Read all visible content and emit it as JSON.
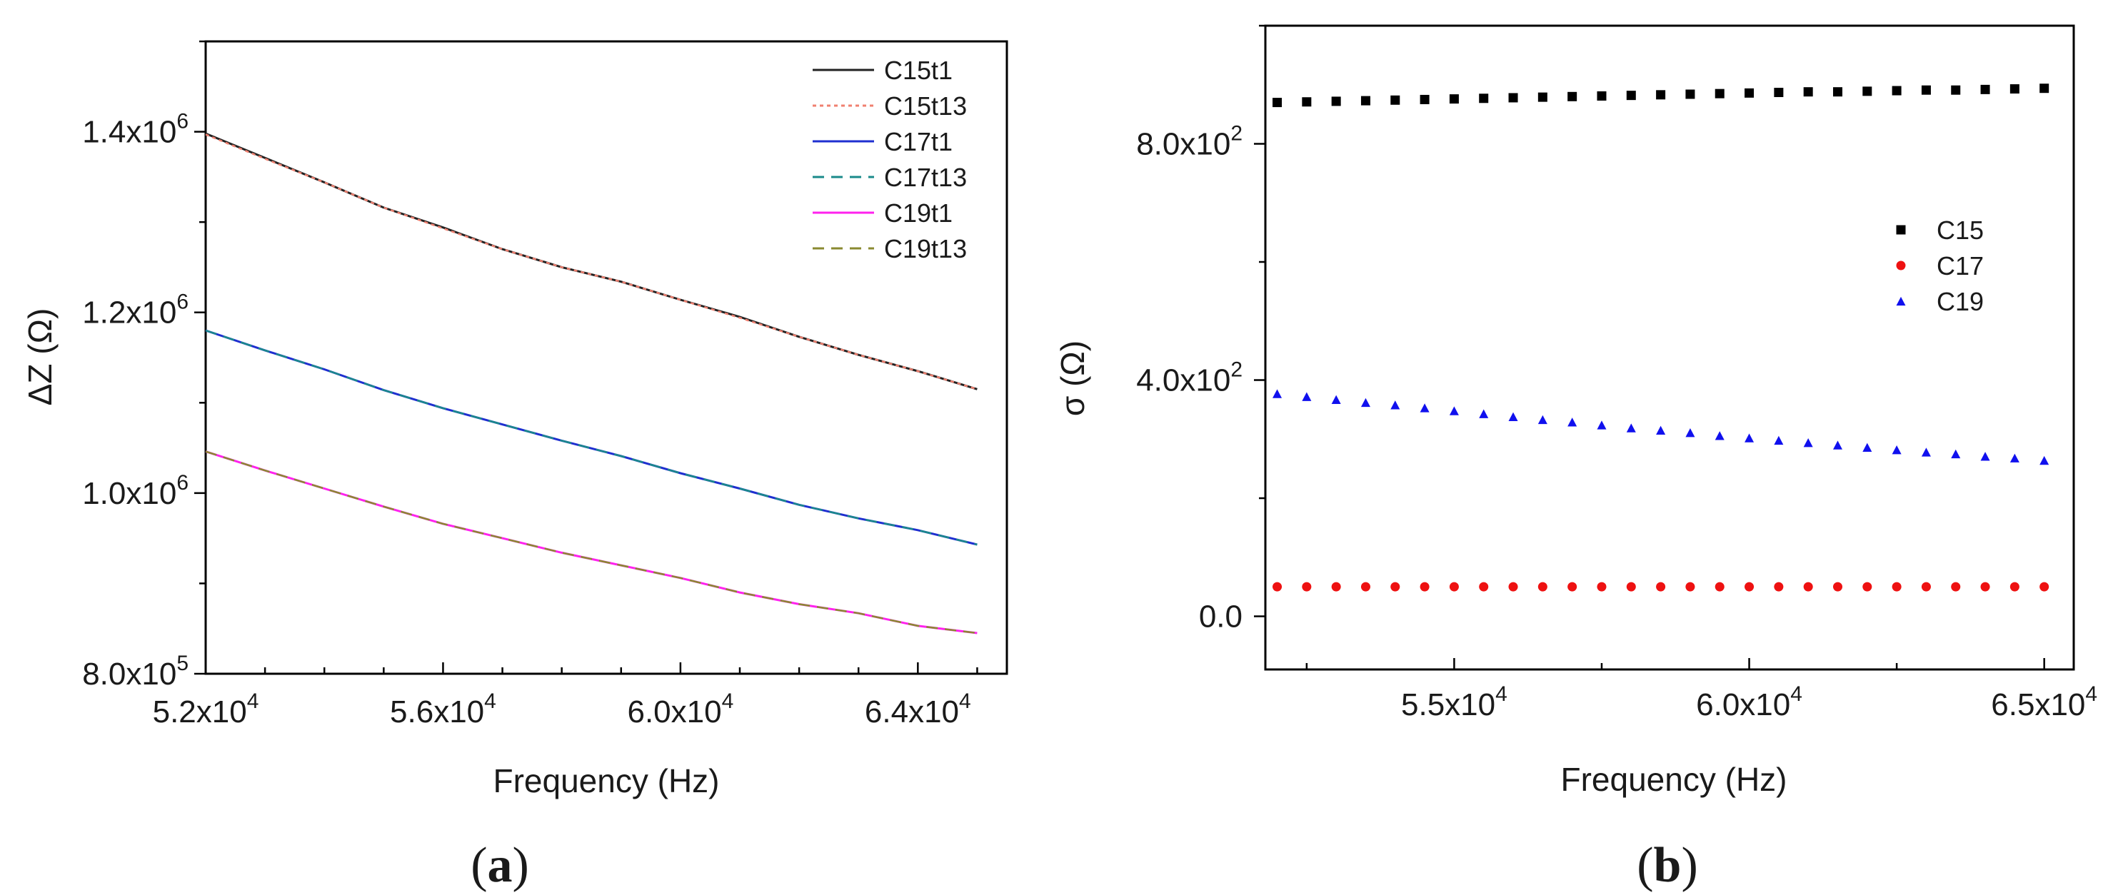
{
  "chart_data": [
    {
      "panel": "a",
      "type": "line",
      "xlabel": "Frequency (Hz)",
      "ylabel": "ΔZ (Ω)",
      "xlim": [
        52000,
        65500
      ],
      "ylim": [
        800000,
        1500000
      ],
      "x_ticks": [
        52000,
        56000,
        60000,
        64000
      ],
      "x_tick_labels": [
        {
          "m": "5.2x10",
          "e": "4"
        },
        {
          "m": "5.6x10",
          "e": "4"
        },
        {
          "m": "6.0x10",
          "e": "4"
        },
        {
          "m": "6.4x10",
          "e": "4"
        }
      ],
      "y_ticks": [
        800000,
        1000000,
        1200000,
        1400000
      ],
      "y_tick_labels": [
        {
          "m": "8.0x10",
          "e": "5"
        },
        {
          "m": "1.0x10",
          "e": "6"
        },
        {
          "m": "1.2x10",
          "e": "6"
        },
        {
          "m": "1.4x10",
          "e": "6"
        }
      ],
      "grid": false,
      "legend_position": "top-right",
      "x": [
        52000,
        53000,
        54000,
        55000,
        56000,
        57000,
        58000,
        59000,
        60000,
        61000,
        62000,
        63000,
        64000,
        65000
      ],
      "series": [
        {
          "name": "C15t1",
          "color": "#222222",
          "dash": "solid",
          "values": [
            1398000,
            1371000,
            1344000,
            1316000,
            1294000,
            1270000,
            1250000,
            1234000,
            1214000,
            1195000,
            1173000,
            1153000,
            1135000,
            1115000
          ]
        },
        {
          "name": "C15t13",
          "color": "#f08070",
          "dash": "dot",
          "values": [
            1397000,
            1370000,
            1344000,
            1316000,
            1293000,
            1270000,
            1250000,
            1234000,
            1214000,
            1194000,
            1173000,
            1153000,
            1135000,
            1115000
          ]
        },
        {
          "name": "C17t1",
          "color": "#1f2fd0",
          "dash": "solid",
          "values": [
            1180000,
            1158000,
            1137000,
            1114000,
            1094000,
            1076000,
            1058000,
            1041000,
            1022000,
            1005000,
            987000,
            972000,
            959000,
            943000
          ]
        },
        {
          "name": "C17t13",
          "color": "#1a8a8a",
          "dash": "dash",
          "values": [
            1180000,
            1158000,
            1137000,
            1114000,
            1094000,
            1076000,
            1058000,
            1041000,
            1022000,
            1005000,
            987000,
            972000,
            959000,
            943000
          ]
        },
        {
          "name": "C19t1",
          "color": "#ff22ee",
          "dash": "solid",
          "values": [
            1046000,
            1025000,
            1005000,
            985000,
            966000,
            950000,
            934000,
            920000,
            906000,
            890000,
            877000,
            867000,
            853000,
            845000
          ]
        },
        {
          "name": "C19t13",
          "color": "#8a8a30",
          "dash": "dash",
          "values": [
            1046000,
            1025000,
            1005000,
            985000,
            966000,
            950000,
            934000,
            920000,
            906000,
            890000,
            877000,
            867000,
            853000,
            845000
          ]
        }
      ]
    },
    {
      "panel": "b",
      "type": "scatter",
      "xlabel": "Frequency (Hz)",
      "ylabel": "σ (Ω)",
      "xlim": [
        51800,
        65500
      ],
      "ylim": [
        -90,
        1000
      ],
      "x_ticks": [
        55000,
        60000,
        65000
      ],
      "x_tick_labels": [
        {
          "m": "5.5x10",
          "e": "4"
        },
        {
          "m": "6.0x10",
          "e": "4"
        },
        {
          "m": "6.5x10",
          "e": "4"
        }
      ],
      "y_ticks": [
        0,
        400,
        800
      ],
      "y_tick_labels": [
        {
          "m": "0.0",
          "e": ""
        },
        {
          "m": "4.0x10",
          "e": "2"
        },
        {
          "m": "8.0x10",
          "e": "2"
        }
      ],
      "grid": false,
      "legend_position": "right",
      "x": [
        52000,
        52500,
        53000,
        53500,
        54000,
        54500,
        55000,
        55500,
        56000,
        56500,
        57000,
        57500,
        58000,
        58500,
        59000,
        59500,
        60000,
        60500,
        61000,
        61500,
        62000,
        62500,
        63000,
        63500,
        64000,
        64500,
        65000
      ],
      "series": [
        {
          "name": "C15",
          "color": "#000000",
          "marker": "square",
          "values": [
            870,
            871,
            872,
            873,
            874,
            875,
            876,
            877,
            878,
            879,
            880,
            881,
            882,
            883,
            884,
            885,
            886,
            887,
            888,
            888,
            889,
            890,
            891,
            891,
            892,
            893,
            894
          ]
        },
        {
          "name": "C17",
          "color": "#ee1111",
          "marker": "circle",
          "values": [
            50,
            50,
            50,
            50,
            50,
            50,
            50,
            50,
            50,
            50,
            50,
            50,
            50,
            50,
            50,
            50,
            50,
            50,
            50,
            50,
            50,
            50,
            50,
            50,
            50,
            50,
            50
          ]
        },
        {
          "name": "C19",
          "color": "#1010ee",
          "marker": "triangle",
          "values": [
            377,
            372,
            367,
            362,
            358,
            353,
            348,
            343,
            338,
            333,
            329,
            324,
            319,
            315,
            311,
            306,
            302,
            298,
            294,
            290,
            286,
            282,
            278,
            275,
            271,
            268,
            264
          ]
        }
      ]
    }
  ],
  "panel_labels": [
    "a",
    "b"
  ]
}
